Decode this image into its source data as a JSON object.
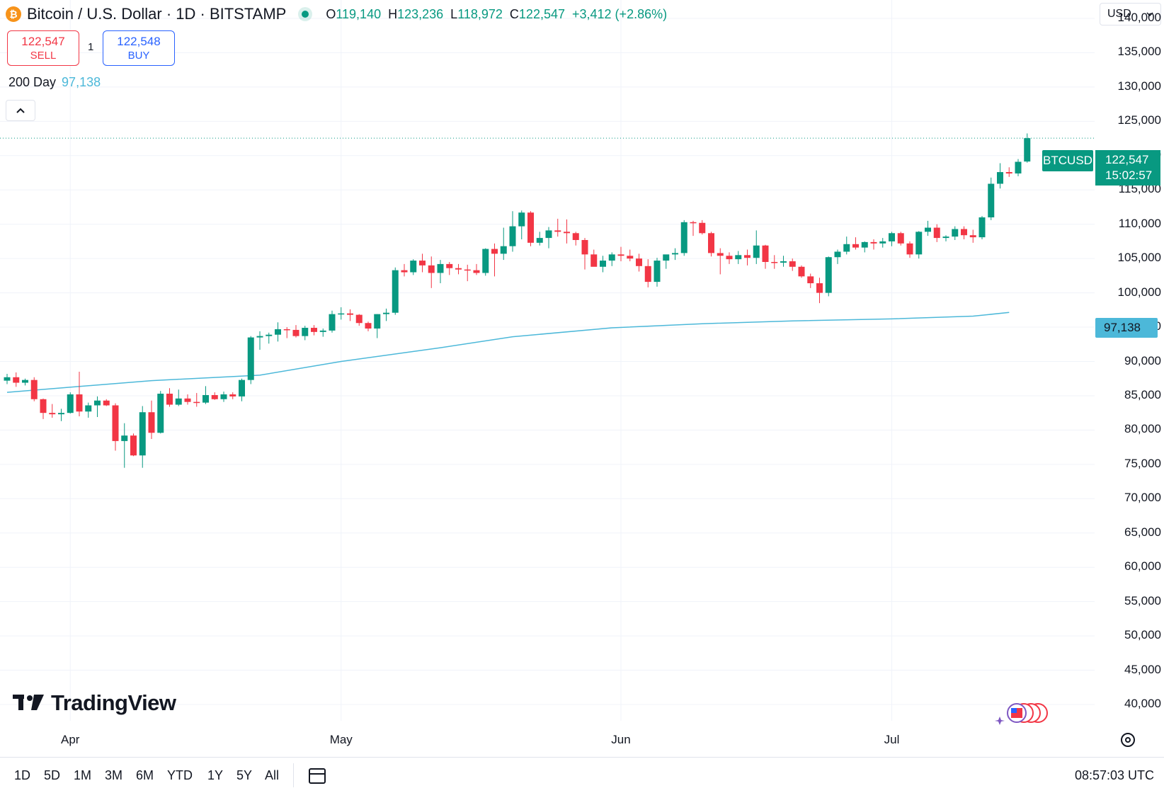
{
  "header": {
    "logo_glyph": "₿",
    "title": "Bitcoin / U.S. Dollar · 1D · BITSTAMP",
    "ohlc": {
      "o_label": "O",
      "o": "119,140",
      "h_label": "H",
      "h": "123,236",
      "l_label": "L",
      "l": "118,972",
      "c_label": "C",
      "c": "122,547",
      "change": "+3,412 (+2.86%)"
    }
  },
  "trade": {
    "sell_price": "122,547",
    "sell_label": "SELL",
    "quantity": "1",
    "buy_price": "122,548",
    "buy_label": "BUY"
  },
  "indicator": {
    "name": "200 Day",
    "value": "97,138"
  },
  "currency": {
    "label": "USD",
    "icon": "chevron-down-icon"
  },
  "price_tags": {
    "symbol": "BTCUSD",
    "last_price": "122,547",
    "countdown": "15:02:57",
    "ma_value": "97,138"
  },
  "branding": {
    "logo_text": "TradingView"
  },
  "range_buttons": [
    "1D",
    "5D",
    "1M",
    "3M",
    "6M",
    "YTD",
    "1Y",
    "5Y",
    "All"
  ],
  "clock": "08:57:03 UTC",
  "colors": {
    "up": "#089981",
    "down": "#f23645",
    "ma": "#4cb8d9",
    "grid": "#f0f3fa"
  },
  "chart_data": {
    "type": "candlestick",
    "title": "Bitcoin / U.S. Dollar · 1D · BITSTAMP",
    "ylim": [
      37500,
      147500
    ],
    "y_ticks": [
      40000,
      45000,
      50000,
      55000,
      60000,
      65000,
      70000,
      75000,
      80000,
      85000,
      90000,
      95000,
      100000,
      105000,
      110000,
      115000,
      120000,
      125000,
      130000,
      135000,
      140000
    ],
    "y_tick_labels": [
      "40,000",
      "45,000",
      "50,000",
      "55,000",
      "60,000",
      "65,000",
      "70,000",
      "75,000",
      "80,000",
      "85,000",
      "90,000",
      "95,000",
      "100,000",
      "105,000",
      "110,000",
      "115,000",
      "120,000",
      "125,000",
      "130,000",
      "135,000",
      "140,000"
    ],
    "x_labels": [
      {
        "label": "Apr",
        "date": "2025-04-01"
      },
      {
        "label": "May",
        "date": "2025-05-01"
      },
      {
        "label": "Jun",
        "date": "2025-06-01"
      },
      {
        "label": "Jul",
        "date": "2025-07-01"
      }
    ],
    "grid": true,
    "series": [
      {
        "name": "BTCUSD",
        "kind": "candles",
        "start_date": "2025-03-25",
        "ohlc": [
          [
            87200,
            88200,
            86700,
            87700
          ],
          [
            87700,
            88400,
            86300,
            86900
          ],
          [
            86900,
            87500,
            86500,
            87300
          ],
          [
            87300,
            87700,
            84200,
            84500
          ],
          [
            84500,
            84600,
            81600,
            82500
          ],
          [
            82500,
            83800,
            81800,
            82300
          ],
          [
            82300,
            83100,
            81300,
            82500
          ],
          [
            82500,
            85500,
            82400,
            85200
          ],
          [
            85200,
            88500,
            82000,
            82700
          ],
          [
            82700,
            84000,
            81800,
            83600
          ],
          [
            83600,
            84900,
            81900,
            84300
          ],
          [
            84300,
            84500,
            83500,
            83600
          ],
          [
            83600,
            83900,
            77000,
            78400
          ],
          [
            78400,
            81000,
            74500,
            79200
          ],
          [
            79200,
            79500,
            76200,
            76300
          ],
          [
            76300,
            83500,
            74500,
            82600
          ],
          [
            82600,
            84300,
            78700,
            79600
          ],
          [
            79600,
            85700,
            79500,
            85300
          ],
          [
            85300,
            86100,
            83400,
            83700
          ],
          [
            83700,
            85900,
            83500,
            84600
          ],
          [
            84600,
            85200,
            83700,
            84100
          ],
          [
            84100,
            85400,
            83400,
            84000
          ],
          [
            84000,
            86400,
            83800,
            85100
          ],
          [
            85100,
            85500,
            84400,
            84500
          ],
          [
            84500,
            85600,
            84100,
            85200
          ],
          [
            85200,
            85500,
            84500,
            84900
          ],
          [
            84900,
            87500,
            84200,
            87300
          ],
          [
            87300,
            93700,
            86700,
            93500
          ],
          [
            93500,
            94400,
            91700,
            93700
          ],
          [
            93700,
            94200,
            92600,
            93900
          ],
          [
            93900,
            95700,
            92900,
            94700
          ],
          [
            94700,
            95000,
            93400,
            94600
          ],
          [
            94600,
            95300,
            93500,
            93700
          ],
          [
            93700,
            95200,
            93100,
            94900
          ],
          [
            94900,
            95300,
            93800,
            94300
          ],
          [
            94300,
            94800,
            93600,
            94500
          ],
          [
            94500,
            97400,
            94200,
            96900
          ],
          [
            96900,
            97900,
            96100,
            97000
          ],
          [
            97000,
            97600,
            95900,
            96800
          ],
          [
            96800,
            96900,
            95200,
            95600
          ],
          [
            95600,
            95800,
            94400,
            94800
          ],
          [
            94800,
            96900,
            93400,
            96900
          ],
          [
            96900,
            97700,
            95900,
            97100
          ],
          [
            97100,
            103700,
            96800,
            103300
          ],
          [
            103300,
            104200,
            102400,
            103000
          ],
          [
            103000,
            104900,
            102600,
            104700
          ],
          [
            104700,
            105700,
            103000,
            104000
          ],
          [
            104000,
            105300,
            100700,
            102900
          ],
          [
            102900,
            104800,
            101400,
            104200
          ],
          [
            104200,
            104500,
            102600,
            103600
          ],
          [
            103600,
            104200,
            102700,
            103400
          ],
          [
            103400,
            104100,
            101700,
            103300
          ],
          [
            103300,
            104200,
            102600,
            102900
          ],
          [
            102900,
            106500,
            102500,
            106400
          ],
          [
            106400,
            107200,
            102400,
            105700
          ],
          [
            105700,
            109500,
            104800,
            106800
          ],
          [
            106800,
            111900,
            106000,
            109700
          ],
          [
            109700,
            112000,
            107800,
            111700
          ],
          [
            111700,
            111900,
            106800,
            107300
          ],
          [
            107300,
            108900,
            106900,
            108000
          ],
          [
            108000,
            109600,
            106500,
            109100
          ],
          [
            109100,
            110800,
            108200,
            108900
          ],
          [
            108900,
            110700,
            107200,
            108700
          ],
          [
            108700,
            108900,
            106900,
            107700
          ],
          [
            107700,
            108000,
            103400,
            105600
          ],
          [
            105600,
            106300,
            103900,
            103800
          ],
          [
            103800,
            105400,
            103000,
            104700
          ],
          [
            104700,
            105900,
            103900,
            105600
          ],
          [
            105600,
            106700,
            104600,
            105400
          ],
          [
            105400,
            106300,
            104600,
            105000
          ],
          [
            105000,
            105700,
            103100,
            103900
          ],
          [
            103900,
            104900,
            100800,
            101600
          ],
          [
            101600,
            105100,
            100900,
            104700
          ],
          [
            104700,
            105400,
            103500,
            105600
          ],
          [
            105600,
            106500,
            104800,
            105800
          ],
          [
            105800,
            110600,
            105400,
            110300
          ],
          [
            110300,
            110500,
            108300,
            110200
          ],
          [
            110200,
            110600,
            108500,
            108700
          ],
          [
            108700,
            108900,
            105300,
            105800
          ],
          [
            105800,
            106500,
            102700,
            105400
          ],
          [
            105400,
            105900,
            104200,
            104900
          ],
          [
            104900,
            106100,
            104200,
            105500
          ],
          [
            105500,
            106300,
            104000,
            105100
          ],
          [
            105100,
            109100,
            104200,
            106900
          ],
          [
            106900,
            107000,
            103500,
            104500
          ],
          [
            104500,
            105500,
            103500,
            104400
          ],
          [
            104400,
            105400,
            103800,
            104600
          ],
          [
            104600,
            105000,
            103200,
            103800
          ],
          [
            103800,
            104000,
            102200,
            102400
          ],
          [
            102400,
            102800,
            100700,
            101400
          ],
          [
            101400,
            102200,
            98500,
            100000
          ],
          [
            100000,
            105300,
            99500,
            105200
          ],
          [
            105200,
            106300,
            104200,
            106000
          ],
          [
            106000,
            108200,
            105600,
            107100
          ],
          [
            107100,
            108100,
            106300,
            106600
          ],
          [
            106600,
            107500,
            105900,
            107400
          ],
          [
            107400,
            107800,
            106300,
            107200
          ],
          [
            107200,
            108000,
            106600,
            107500
          ],
          [
            107500,
            108900,
            106800,
            108700
          ],
          [
            108700,
            108900,
            106900,
            107200
          ],
          [
            107200,
            107500,
            105100,
            105600
          ],
          [
            105600,
            109000,
            105000,
            108900
          ],
          [
            108900,
            110500,
            108300,
            109500
          ],
          [
            109500,
            110000,
            107400,
            108000
          ],
          [
            108000,
            108400,
            107500,
            108200
          ],
          [
            108200,
            109700,
            107700,
            109300
          ],
          [
            109300,
            109700,
            107800,
            108400
          ],
          [
            108400,
            109200,
            107300,
            108100
          ],
          [
            108100,
            111200,
            107800,
            111000
          ],
          [
            111000,
            116800,
            110600,
            115900
          ],
          [
            115900,
            118900,
            115200,
            117600
          ],
          [
            117600,
            118300,
            116900,
            117400
          ],
          [
            117400,
            119500,
            117000,
            119100
          ],
          [
            119140,
            123236,
            118972,
            122547
          ]
        ]
      },
      {
        "name": "200 Day",
        "kind": "line",
        "points": [
          [
            "2025-03-25",
            85500
          ],
          [
            "2025-04-10",
            87200
          ],
          [
            "2025-04-22",
            88000
          ],
          [
            "2025-05-01",
            90000
          ],
          [
            "2025-05-12",
            92000
          ],
          [
            "2025-05-20",
            93600
          ],
          [
            "2025-05-31",
            94900
          ],
          [
            "2025-06-10",
            95500
          ],
          [
            "2025-06-20",
            95900
          ],
          [
            "2025-07-01",
            96200
          ],
          [
            "2025-07-10",
            96600
          ],
          [
            "2025-07-14",
            97138
          ]
        ]
      }
    ]
  }
}
